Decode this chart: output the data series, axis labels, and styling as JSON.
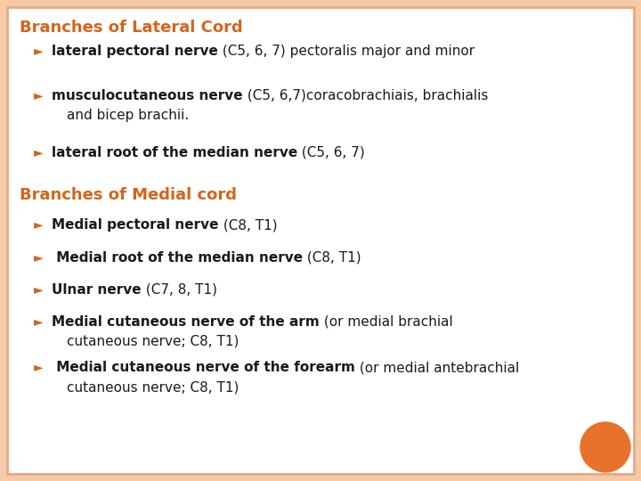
{
  "background_outer": "#f5cba7",
  "background_inner": "#ffffff",
  "border_color": "#e8a882",
  "title1": "Branches of Lateral Cord",
  "title1_color": "#d4651a",
  "title2": "Branches of Medial cord",
  "title2_color": "#d4651a",
  "arrow_color": "#d4651a",
  "text_color": "#1a1a1a",
  "bold_color": "#1a1a1a",
  "circle_color": "#e8722a",
  "fontsize_title": 13,
  "fontsize_body": 11,
  "section1": [
    {
      "bold": "lateral pectoral nerve",
      "normal": " (C5, 6, 7) pectoralis major and minor",
      "cont": ""
    },
    {
      "bold": "musculocutaneous nerve",
      "normal": " (C5, 6,7)coracobrachiais, brachialis",
      "cont": "and bicep brachii."
    },
    {
      "bold": "lateral root of the median nerve",
      "normal": " (C5, 6, 7)",
      "cont": ""
    }
  ],
  "section2": [
    {
      "bold": "Medial pectoral nerve",
      "normal": " (C8, T1)",
      "cont": ""
    },
    {
      "bold": " Medial root of the median nerve",
      "normal": " (C8, T1)",
      "cont": ""
    },
    {
      "bold": "Ulnar nerve",
      "normal": " (C7, 8, T1)",
      "cont": ""
    },
    {
      "bold": "Medial cutaneous nerve of the arm",
      "normal": " (or medial brachial",
      "cont": "cutaneous nerve; C8, T1)"
    },
    {
      "bold": " Medial cutaneous nerve of the forearm",
      "normal": " (or medial antebrachial",
      "cont": "cutaneous nerve; C8, T1)"
    }
  ]
}
